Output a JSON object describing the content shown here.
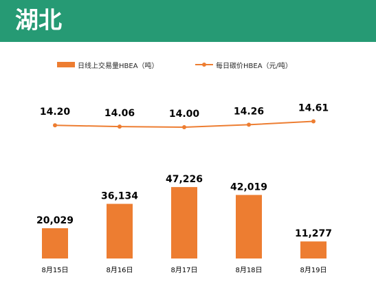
{
  "header": {
    "title": "湖北"
  },
  "legend": {
    "bar_label": "日线上交易量HBEA（吨）",
    "line_label": "每日碳价HBEA（元/吨）"
  },
  "colors": {
    "header_bg": "#269a74",
    "series": "#ed7d31"
  },
  "chart_data": {
    "type": "bar",
    "categories": [
      "8月15日",
      "8月16日",
      "8月17日",
      "8月18日",
      "8月19日"
    ],
    "series": [
      {
        "name": "日线上交易量HBEA（吨）",
        "type": "bar",
        "values": [
          20029,
          36134,
          47226,
          42019,
          11277
        ],
        "labels": [
          "20,029",
          "36,134",
          "47,226",
          "42,019",
          "11,277"
        ]
      },
      {
        "name": "每日碳价HBEA（元/吨）",
        "type": "line",
        "values": [
          14.2,
          14.06,
          14.0,
          14.26,
          14.61
        ],
        "labels": [
          "14.20",
          "14.06",
          "14.00",
          "14.26",
          "14.61"
        ]
      }
    ],
    "legend_position": "top",
    "grid": false
  }
}
